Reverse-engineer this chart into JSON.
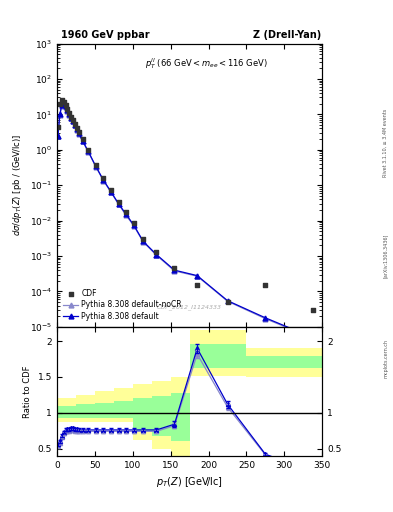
{
  "title_left": "1960 GeV ppbar",
  "title_right": "Z (Drell-Yan)",
  "watermark": "CDF_2012_I1124333",
  "ylabel_main": "dσ/dp_T(Z) [pb / (GeV!/lc)]",
  "ylabel_ratio": "Ratio to CDF",
  "xlabel": "p_T(Z) [GeV!/lc]",
  "rivet_label": "Rivet 3.1.10, ≥ 3.4M events",
  "arxiv_label": "[arXiv:1306.3436]",
  "mcplots_label": "mcplots.cern.ch",
  "cdf_x": [
    1.25,
    3.75,
    6.25,
    8.75,
    11.25,
    13.75,
    16.25,
    18.75,
    21.25,
    23.75,
    26.25,
    28.75,
    33.75,
    41.25,
    51.25,
    61.25,
    71.25,
    81.25,
    91.25,
    101.25,
    113.75,
    131.25,
    155.0,
    185.0,
    225.0,
    275.0,
    337.5
  ],
  "cdf_y": [
    4.5,
    20,
    25,
    22,
    18,
    14,
    11,
    8.5,
    7.0,
    5.5,
    4.2,
    3.2,
    2.0,
    1.0,
    0.38,
    0.16,
    0.072,
    0.034,
    0.017,
    0.0085,
    0.003,
    0.0013,
    0.00045,
    0.00015,
    5e-05,
    0.00015,
    3e-05
  ],
  "py_default_x": [
    1.25,
    3.75,
    6.25,
    8.75,
    11.25,
    13.75,
    16.25,
    18.75,
    21.25,
    23.75,
    26.25,
    28.75,
    33.75,
    41.25,
    51.25,
    61.25,
    71.25,
    81.25,
    91.25,
    101.25,
    113.75,
    131.25,
    155.0,
    185.0,
    225.0,
    275.0,
    337.5
  ],
  "py_default_y": [
    2.5,
    10,
    18,
    20,
    17,
    13,
    10,
    8.0,
    6.5,
    5.0,
    3.8,
    2.9,
    1.8,
    0.9,
    0.34,
    0.14,
    0.065,
    0.03,
    0.015,
    0.0075,
    0.0026,
    0.0011,
    0.0004,
    0.00028,
    5.5e-05,
    1.8e-05,
    5e-06
  ],
  "py_nocr_x": [
    1.25,
    3.75,
    6.25,
    8.75,
    11.25,
    13.75,
    16.25,
    18.75,
    21.25,
    23.75,
    26.25,
    28.75,
    33.75,
    41.25,
    51.25,
    61.25,
    71.25,
    81.25,
    91.25,
    101.25,
    113.75,
    131.25,
    155.0,
    185.0,
    225.0,
    275.0,
    337.5
  ],
  "py_nocr_y": [
    2.4,
    9.5,
    17,
    19,
    16.5,
    12.5,
    9.8,
    7.8,
    6.3,
    4.9,
    3.7,
    2.8,
    1.75,
    0.88,
    0.33,
    0.135,
    0.063,
    0.029,
    0.014,
    0.0072,
    0.0025,
    0.00105,
    0.00038,
    0.00027,
    5.3e-05,
    1.7e-05,
    4.8e-06
  ],
  "ratio_default_y": [
    0.56,
    0.6,
    0.68,
    0.73,
    0.76,
    0.77,
    0.77,
    0.78,
    0.78,
    0.77,
    0.77,
    0.76,
    0.76,
    0.76,
    0.76,
    0.76,
    0.76,
    0.76,
    0.76,
    0.76,
    0.76,
    0.76,
    0.84,
    1.9,
    1.12,
    0.42,
    0.18
  ],
  "ratio_nocr_y": [
    0.53,
    0.58,
    0.66,
    0.71,
    0.74,
    0.75,
    0.75,
    0.76,
    0.76,
    0.75,
    0.75,
    0.74,
    0.74,
    0.74,
    0.74,
    0.74,
    0.74,
    0.74,
    0.74,
    0.74,
    0.74,
    0.74,
    0.82,
    1.82,
    1.08,
    0.41,
    0.17
  ],
  "yband_steps_x": [
    0,
    25,
    50,
    75,
    100,
    125,
    150,
    175,
    200,
    250,
    300,
    350
  ],
  "yband_lo": [
    0.87,
    0.87,
    0.87,
    0.87,
    0.62,
    0.5,
    0.4,
    1.52,
    1.52,
    1.5,
    1.5,
    1.5
  ],
  "yband_hi": [
    1.2,
    1.25,
    1.3,
    1.35,
    1.4,
    1.45,
    1.5,
    2.15,
    2.15,
    1.9,
    1.9,
    1.9
  ],
  "gband_lo": [
    0.93,
    0.93,
    0.93,
    0.93,
    0.75,
    0.67,
    0.6,
    1.63,
    1.63,
    1.63,
    1.63,
    1.63
  ],
  "gband_hi": [
    1.1,
    1.12,
    1.14,
    1.17,
    1.2,
    1.23,
    1.28,
    1.96,
    1.96,
    1.79,
    1.79,
    1.79
  ],
  "color_cdf": "#333333",
  "color_default": "#0000cc",
  "color_nocr": "#8888cc",
  "color_yellow": "#ffff99",
  "color_green": "#99ff99",
  "xlim": [
    0,
    350
  ],
  "bg_color": "#ffffff"
}
